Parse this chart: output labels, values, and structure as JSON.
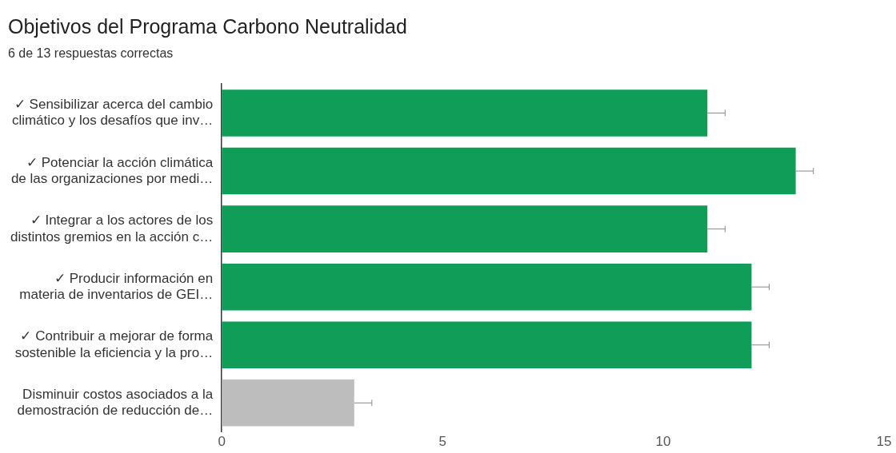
{
  "chart_data": {
    "type": "bar",
    "orientation": "horizontal",
    "title": "Objetivos del Programa Carbono Neutralidad",
    "subtitle": "6 de 13 respuestas correctas",
    "categories": [
      "✓ Sensibilizar acerca del cambio\nclimático y los desafíos que inv…",
      "✓ Potenciar la acción climática\nde las organizaciones por medi…",
      "✓ Integrar a los actores de los\ndistintos gremios en la acción c…",
      "✓ Producir información en\nmateria de inventarios de GEI…",
      "✓ Contribuir a mejorar de forma\nsostenible la eficiencia y la pro…",
      "Disminuir costos asociados a la\ndemostración de reducción de…"
    ],
    "values": [
      11,
      13,
      11,
      12,
      12,
      3
    ],
    "colors": [
      "#0f9d58",
      "#0f9d58",
      "#0f9d58",
      "#0f9d58",
      "#0f9d58",
      "#bdbdbd"
    ],
    "errors": [
      [
        11,
        11.4
      ],
      [
        13,
        13.4
      ],
      [
        11,
        11.4
      ],
      [
        12,
        12.4
      ],
      [
        12,
        12.4
      ],
      [
        3,
        3.4
      ]
    ],
    "xlim": [
      0,
      15
    ],
    "xticks": [
      0,
      5,
      10,
      15
    ],
    "grid": false,
    "legend": false
  }
}
